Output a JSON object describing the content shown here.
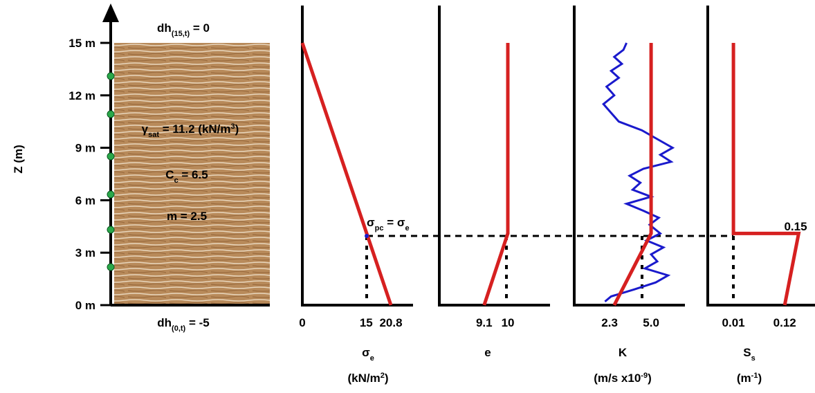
{
  "soil_column": {
    "ylabel": "Z (m)",
    "yticks": [
      {
        "value": 0,
        "label": "0 m"
      },
      {
        "value": 3,
        "label": "3 m"
      },
      {
        "value": 6,
        "label": "6 m"
      },
      {
        "value": 9,
        "label": "9 m"
      },
      {
        "value": 12,
        "label": "12 m"
      },
      {
        "value": 15,
        "label": "15 m"
      }
    ],
    "ylim": [
      0,
      15
    ],
    "top_bc": {
      "symbol": "dh",
      "subscript": "(15,t)",
      "rest": " = 0"
    },
    "bottom_bc": {
      "symbol": "dh",
      "subscript": "(0,t)",
      "rest": " = -5"
    },
    "gamma": {
      "symbol": "γ",
      "subscript": "sat",
      "rest": " = 11.2 (kN/m",
      "sup": "3",
      "end": ")"
    },
    "cc": {
      "symbol": "C",
      "subscript": "c",
      "rest": " = 6.5"
    },
    "m": "m  = 2.5"
  },
  "chart_data": [
    {
      "type": "line",
      "xlabel": {
        "symbol": "σ",
        "subscript": "e"
      },
      "xunit": {
        "pre": "(kN/m",
        "sup": "2",
        "post": ")"
      },
      "xlim": [
        0,
        26
      ],
      "xticks": [
        0,
        15,
        20.8
      ],
      "ylim": [
        0,
        15
      ],
      "annotation": {
        "a": "σ",
        "a_sub": "pc",
        "mid": " = σ",
        "b_sub": "e"
      },
      "series": [
        {
          "color": "#d62020",
          "values": [
            0,
            20.8
          ],
          "z": [
            15,
            0
          ]
        }
      ]
    },
    {
      "type": "line",
      "xlabel": {
        "symbol": "e"
      },
      "xlim": [
        7.4,
        11.6
      ],
      "xticks": [
        9.1,
        10
      ],
      "ylim": [
        0,
        15
      ],
      "series": [
        {
          "color": "#d62020",
          "values": [
            10,
            10,
            9.1
          ],
          "z": [
            15,
            4.1,
            0
          ]
        }
      ]
    },
    {
      "type": "line",
      "xlabel": {
        "symbol": "K"
      },
      "xunit": {
        "pre": "(m/s x10",
        "sup": "-9",
        "post": ")"
      },
      "xlim": [
        0,
        7.2
      ],
      "xticks": [
        2.3,
        {
          "value": 5,
          "label": "5.0"
        }
      ],
      "ylim": [
        0,
        15
      ],
      "series": [
        {
          "color": "#1a1acc",
          "values": [
            3.4,
            3.2,
            2.6,
            3.1,
            2.4,
            2.9,
            2.1,
            2.6,
            1.9,
            2.4,
            2.9,
            4.4,
            5.4,
            6.4,
            5.6,
            6.3,
            4.5,
            3.6,
            4.3,
            3.8,
            5.0,
            3.4,
            4.5,
            5.5,
            4.9,
            5.6,
            4.7,
            5.8,
            5.0,
            5.4,
            4.6,
            6.1,
            5.3,
            3.9,
            2.4,
            2.0
          ],
          "z": [
            15,
            14.6,
            14.2,
            13.8,
            13.4,
            13.0,
            12.5,
            12.0,
            11.5,
            11.0,
            10.5,
            10.0,
            9.5,
            9.0,
            8.6,
            8.2,
            7.8,
            7.4,
            7.0,
            6.6,
            6.2,
            5.8,
            5.4,
            5.0,
            4.6,
            4.1,
            3.7,
            3.3,
            2.9,
            2.5,
            2.1,
            1.7,
            1.3,
            0.9,
            0.5,
            0.2
          ]
        },
        {
          "color": "#d62020",
          "values": [
            5.0,
            5.0,
            2.6
          ],
          "z": [
            15,
            4.1,
            0
          ]
        }
      ]
    },
    {
      "type": "line",
      "xlabel": {
        "symbol": "S",
        "subscript": "s"
      },
      "xunit": {
        "pre": "(m",
        "sup": "-1",
        "post": ")"
      },
      "xlim": [
        -0.045,
        0.185
      ],
      "xticks": [
        0.01,
        0.12
      ],
      "ylim": [
        0,
        15
      ],
      "annotation": "0.15",
      "series": [
        {
          "color": "#d62020",
          "values": [
            0.01,
            0.01,
            0.15,
            0.12
          ],
          "z": [
            15,
            4.1,
            4.1,
            0
          ]
        }
      ]
    }
  ]
}
